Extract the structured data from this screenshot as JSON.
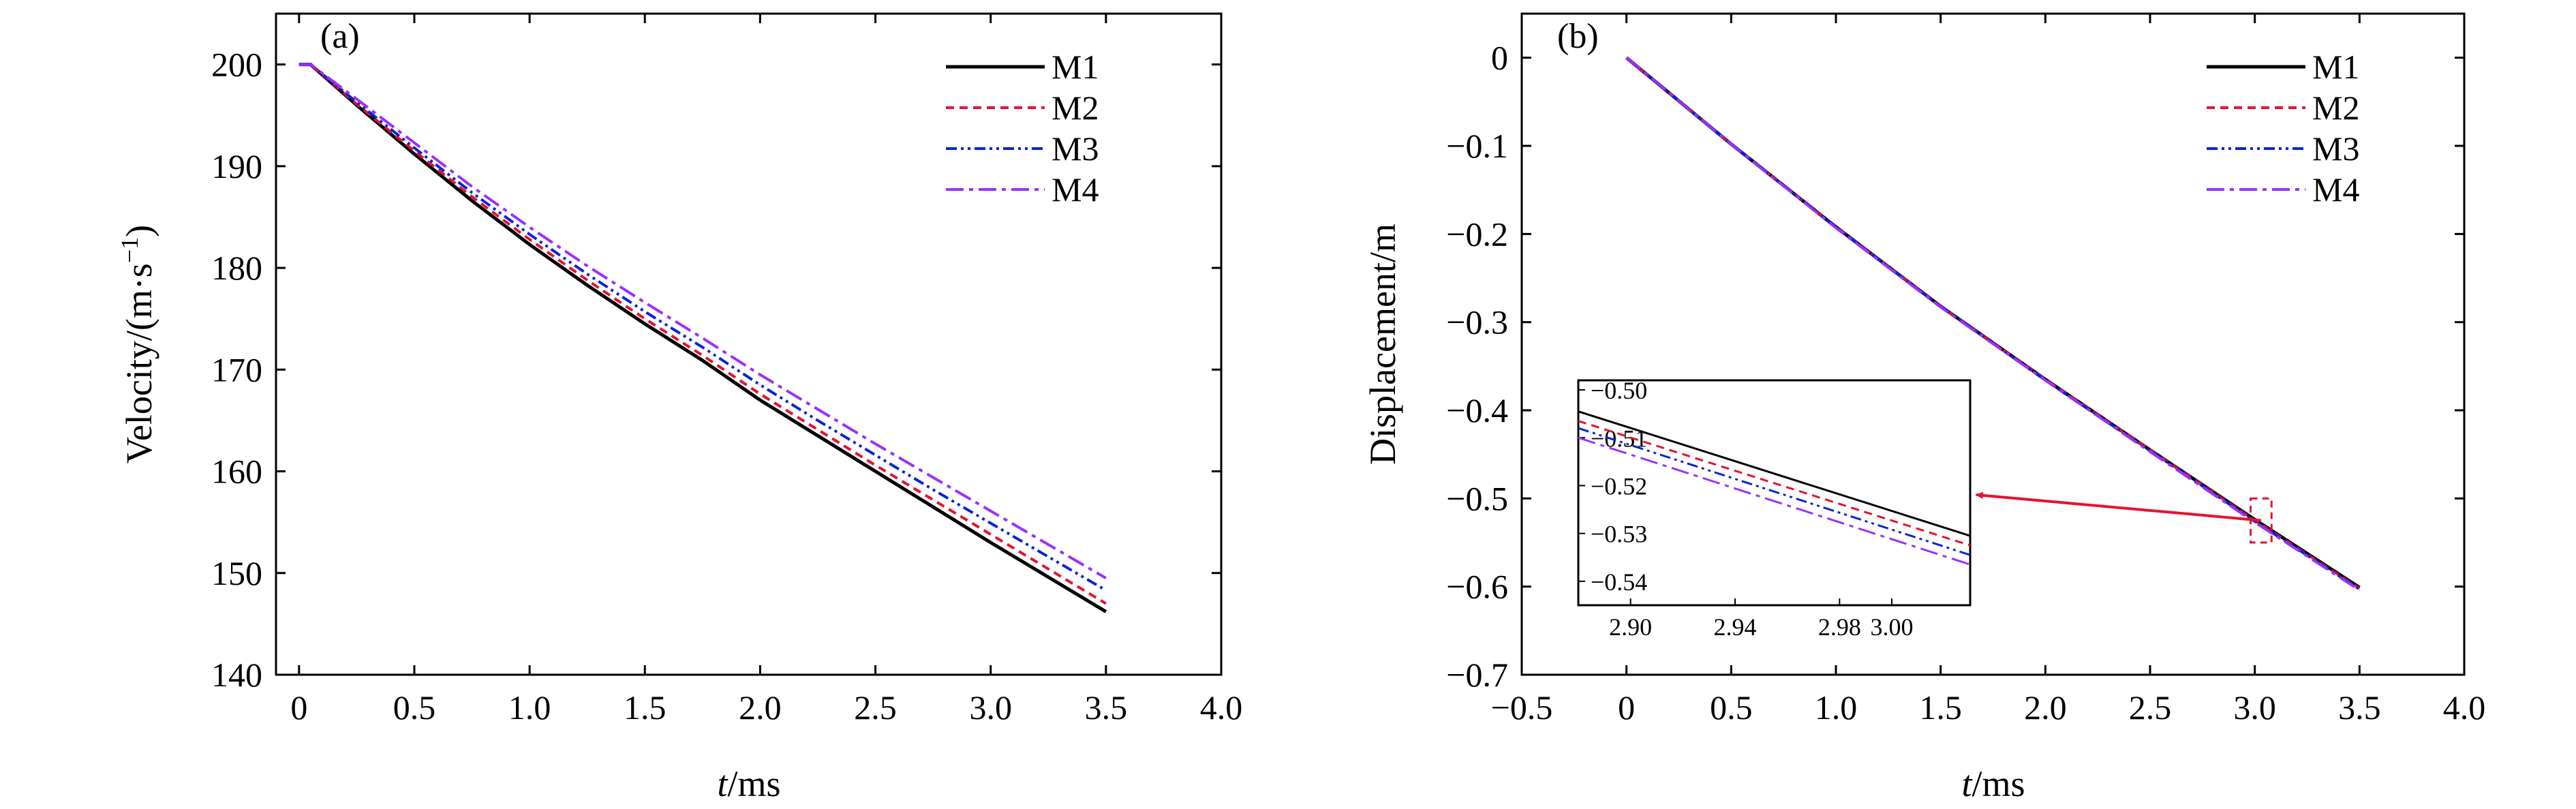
{
  "colors": {
    "M1": "#000000",
    "M2": "#e8112d",
    "M3": "#0a23d8",
    "M4": "#9b30ff",
    "arrow": "#e8112d"
  },
  "chart_data": [
    {
      "type": "line",
      "panel_tag": "(a)",
      "xlabel_italic": "t",
      "xlabel_rest": "/ms",
      "ylabel": "Velocity/(m·s",
      "ylabel_sup": "−1",
      "ylabel_close": ")",
      "xlim": [
        -0.1,
        4.0
      ],
      "ylim": [
        140,
        205
      ],
      "xticks": [
        0,
        0.5,
        1.0,
        1.5,
        2.0,
        2.5,
        3.0,
        3.5,
        4.0
      ],
      "xtick_labels": [
        "0",
        "0.5",
        "1.0",
        "1.5",
        "2.0",
        "2.5",
        "3.0",
        "3.5",
        "4.0"
      ],
      "yticks": [
        140,
        150,
        160,
        170,
        180,
        190,
        200
      ],
      "ytick_labels": [
        "140",
        "150",
        "160",
        "170",
        "180",
        "190",
        "200"
      ],
      "legend": [
        "M1",
        "M2",
        "M3",
        "M4"
      ],
      "legend_position": "top-right",
      "x": [
        0,
        0.05,
        0.25,
        0.5,
        0.75,
        1.0,
        1.25,
        1.5,
        1.75,
        2.0,
        2.25,
        2.5,
        2.75,
        3.0,
        3.25,
        3.5
      ],
      "series": [
        {
          "name": "M1",
          "values": [
            200,
            200,
            196.0,
            191.2,
            186.6,
            182.3,
            178.3,
            174.5,
            170.9,
            167.0,
            163.5,
            160.0,
            156.5,
            153.0,
            149.6,
            146.2
          ]
        },
        {
          "name": "M2",
          "values": [
            200,
            200,
            196.1,
            191.5,
            187.0,
            182.8,
            178.8,
            175.0,
            171.4,
            167.6,
            164.1,
            160.6,
            157.2,
            153.8,
            150.4,
            147.0
          ]
        },
        {
          "name": "M3",
          "values": [
            200,
            200,
            196.3,
            191.8,
            187.4,
            183.3,
            179.4,
            175.7,
            172.2,
            168.5,
            165.0,
            161.6,
            158.2,
            154.9,
            151.6,
            148.3
          ]
        },
        {
          "name": "M4",
          "values": [
            200,
            200,
            196.6,
            192.3,
            188.0,
            184.0,
            180.2,
            176.6,
            173.1,
            169.5,
            166.1,
            162.7,
            159.4,
            156.1,
            152.8,
            149.5
          ]
        }
      ]
    },
    {
      "type": "line",
      "panel_tag": "(b)",
      "xlabel_italic": "t",
      "xlabel_rest": "/ms",
      "ylabel": "Displacement/m",
      "xlim": [
        -0.5,
        4.0
      ],
      "ylim": [
        -0.7,
        0.05
      ],
      "xticks": [
        -0.5,
        0,
        0.5,
        1.0,
        1.5,
        2.0,
        2.5,
        3.0,
        3.5,
        4.0
      ],
      "xtick_labels": [
        "−0.5",
        "0",
        "0.5",
        "1.0",
        "1.5",
        "2.0",
        "2.5",
        "3.0",
        "3.5",
        "4.0"
      ],
      "yticks": [
        0,
        -0.1,
        -0.2,
        -0.3,
        -0.4,
        -0.5,
        -0.6,
        -0.7
      ],
      "ytick_labels": [
        "0",
        "−0.1",
        "−0.2",
        "−0.3",
        "−0.4",
        "−0.5",
        "−0.6",
        "−0.7"
      ],
      "legend": [
        "M1",
        "M2",
        "M3",
        "M4"
      ],
      "legend_position": "top-right",
      "x": [
        0,
        0.5,
        1.0,
        1.5,
        2.0,
        2.5,
        3.0,
        3.5
      ],
      "series": [
        {
          "name": "M1",
          "values": [
            0,
            -0.098,
            -0.192,
            -0.282,
            -0.365,
            -0.445,
            -0.524,
            -0.601
          ]
        },
        {
          "name": "M2",
          "values": [
            0,
            -0.098,
            -0.192,
            -0.282,
            -0.365,
            -0.445,
            -0.525,
            -0.602
          ]
        },
        {
          "name": "M3",
          "values": [
            0,
            -0.098,
            -0.192,
            -0.282,
            -0.366,
            -0.446,
            -0.526,
            -0.603
          ]
        },
        {
          "name": "M4",
          "values": [
            0,
            -0.098,
            -0.193,
            -0.283,
            -0.366,
            -0.447,
            -0.527,
            -0.604
          ]
        }
      ],
      "zoom_box": {
        "x": [
          2.98,
          3.08
        ],
        "y": [
          -0.5,
          -0.55
        ]
      },
      "inset": {
        "xlim": [
          2.88,
          3.03
        ],
        "ylim": [
          -0.545,
          -0.498
        ],
        "xticks": [
          2.9,
          2.94,
          2.98,
          3.0
        ],
        "xtick_labels": [
          "2.90",
          "2.94",
          "2.98",
          "3.00"
        ],
        "yticks": [
          -0.5,
          -0.51,
          -0.52,
          -0.53,
          -0.54
        ],
        "ytick_labels": [
          "−0.50",
          "−0.51",
          "−0.52",
          "−0.53",
          "−0.54"
        ],
        "x": [
          2.88,
          3.03
        ],
        "series": [
          {
            "name": "M1",
            "values": [
              -0.5045,
              -0.5305
            ]
          },
          {
            "name": "M2",
            "values": [
              -0.5065,
              -0.5325
            ]
          },
          {
            "name": "M3",
            "values": [
              -0.508,
              -0.5345
            ]
          },
          {
            "name": "M4",
            "values": [
              -0.51,
              -0.5365
            ]
          }
        ]
      }
    }
  ]
}
